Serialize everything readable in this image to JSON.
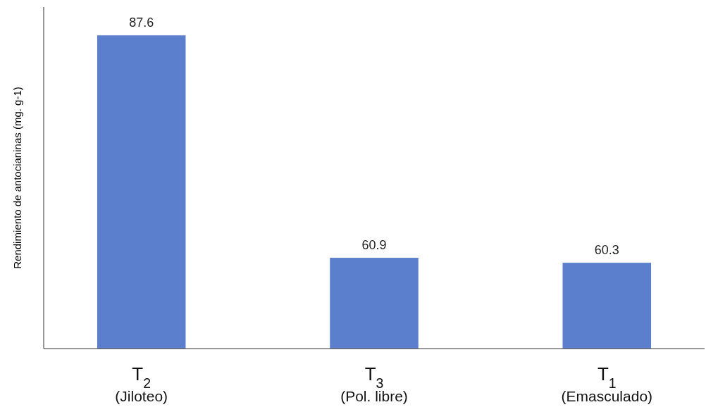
{
  "chart_data": {
    "type": "bar",
    "ylabel": "Rendimiento de antocianinas (mg. g-1)",
    "categories": [
      "T$_{2}$\n(Jiloteo)",
      "T$_{3}$\n(Pol. libre)",
      "T$_{1}$\n(Emasculado)"
    ],
    "values": [
      87.6,
      60.9,
      60.3
    ],
    "color": "#5b7fcc",
    "ylim": [
      50,
      91
    ],
    "data_labels": true,
    "tick_labels": "x"
  }
}
